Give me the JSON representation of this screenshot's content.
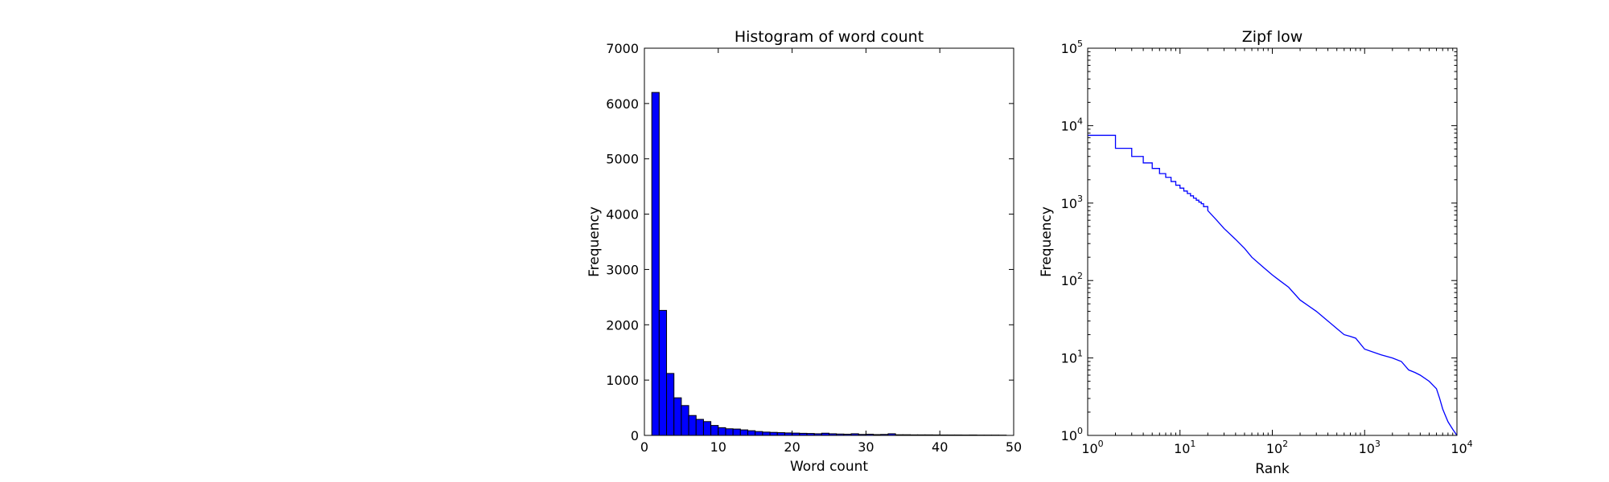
{
  "chart_data": [
    {
      "type": "bar",
      "title": "Histogram of word count",
      "xlabel": "Word count",
      "ylabel": "Frequency",
      "xlim": [
        0,
        50
      ],
      "ylim": [
        0,
        7000
      ],
      "xticks": [
        0,
        10,
        20,
        30,
        40,
        50
      ],
      "yticks": [
        0,
        1000,
        2000,
        3000,
        4000,
        5000,
        6000,
        7000
      ],
      "bin_edges": [
        1,
        2,
        3,
        4,
        5,
        6,
        7,
        8,
        9,
        10,
        11,
        12,
        13,
        14,
        15,
        16,
        17,
        18,
        19,
        20,
        21,
        22,
        23,
        24,
        25,
        26,
        27,
        28,
        29,
        30,
        31,
        32,
        33,
        34,
        35,
        36,
        37,
        38,
        39,
        40,
        41,
        42,
        43,
        44,
        45,
        46,
        47,
        48,
        49
      ],
      "values": [
        6200,
        2260,
        1120,
        680,
        540,
        360,
        290,
        250,
        180,
        140,
        120,
        115,
        100,
        85,
        70,
        60,
        55,
        50,
        45,
        42,
        38,
        35,
        30,
        40,
        30,
        25,
        22,
        30,
        18,
        22,
        15,
        18,
        30,
        12,
        12,
        10,
        10,
        10,
        9,
        8,
        8,
        8,
        7,
        8,
        6,
        6,
        6,
        5
      ],
      "bar_color": "#0000ff",
      "edge_color": "#000000"
    },
    {
      "type": "line",
      "title": "Zipf low",
      "xlabel": "Rank",
      "ylabel": "Frequency",
      "xscale": "log",
      "yscale": "log",
      "xlim": [
        1,
        10000
      ],
      "ylim": [
        1,
        100000
      ],
      "xticks": [
        {
          "base": "10",
          "exp": "0"
        },
        {
          "base": "10",
          "exp": "1"
        },
        {
          "base": "10",
          "exp": "2"
        },
        {
          "base": "10",
          "exp": "3"
        },
        {
          "base": "10",
          "exp": "4"
        }
      ],
      "yticks": [
        {
          "base": "10",
          "exp": "0"
        },
        {
          "base": "10",
          "exp": "1"
        },
        {
          "base": "10",
          "exp": "2"
        },
        {
          "base": "10",
          "exp": "3"
        },
        {
          "base": "10",
          "exp": "4"
        },
        {
          "base": "10",
          "exp": "5"
        }
      ],
      "step": true,
      "x": [
        1,
        2,
        3,
        4,
        5,
        6,
        7,
        8,
        9,
        10,
        11,
        12,
        13,
        14,
        15,
        16,
        17,
        18,
        20,
        25,
        30,
        40,
        50,
        60,
        80,
        100,
        120,
        150,
        200,
        300,
        400,
        500,
        600,
        700,
        800,
        1000,
        1500,
        2000,
        2500,
        3000,
        3500,
        4000,
        5000,
        6000,
        6500,
        7000,
        7500,
        8000,
        9000,
        10000
      ],
      "y": [
        7500,
        5100,
        4000,
        3300,
        2800,
        2400,
        2150,
        1900,
        1700,
        1560,
        1430,
        1330,
        1240,
        1160,
        1090,
        1030,
        980,
        900,
        800,
        600,
        470,
        340,
        260,
        200,
        148,
        118,
        100,
        82,
        56,
        40,
        30,
        24,
        20,
        19,
        18,
        13,
        11,
        10,
        9,
        7,
        6.5,
        6,
        5,
        4,
        3,
        2.2,
        1.8,
        1.5,
        1.2,
        1.0
      ],
      "line_color": "#0000ff"
    }
  ]
}
